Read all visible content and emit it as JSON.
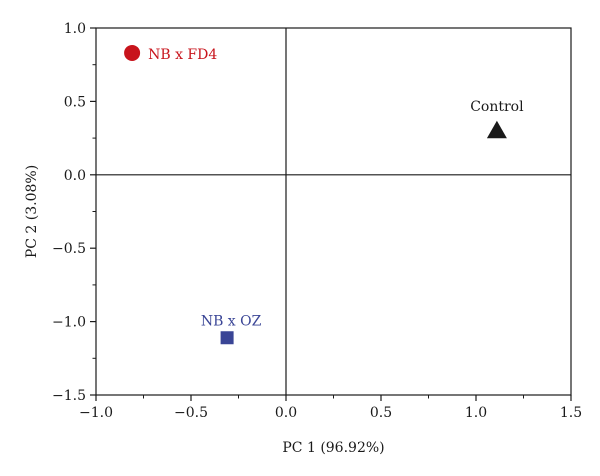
{
  "chart_data": {
    "type": "scatter",
    "title": "",
    "xlabel": "PC 1 (96.92%)",
    "ylabel": "PC 2 (3.08%)",
    "xlim": [
      -1.0,
      1.5
    ],
    "ylim": [
      -1.5,
      1.0
    ],
    "xticks": [
      -1.0,
      -0.5,
      0.0,
      0.5,
      1.0,
      1.5
    ],
    "yticks": [
      -1.5,
      -1.0,
      -0.5,
      0.0,
      0.5,
      1.0
    ],
    "xtick_labels": [
      "−1.0",
      "−0.5",
      "0.0",
      "0.5",
      "1.0",
      "1.5"
    ],
    "ytick_labels": [
      "−1.5",
      "−1.0",
      "−0.5",
      "0.0",
      "0.5",
      "1.0"
    ],
    "grid": false,
    "reference_lines": {
      "x": 0,
      "y": 0
    },
    "points": [
      {
        "label": "NB x FD4",
        "x": -0.81,
        "y": 0.83,
        "marker": "circle",
        "color": "#c8141c"
      },
      {
        "label": "Control",
        "x": 1.11,
        "y": 0.3,
        "marker": "triangle",
        "color": "#1a1a1a"
      },
      {
        "label": "NB x OZ",
        "x": -0.31,
        "y": -1.11,
        "marker": "square",
        "color": "#3a4596"
      }
    ]
  }
}
